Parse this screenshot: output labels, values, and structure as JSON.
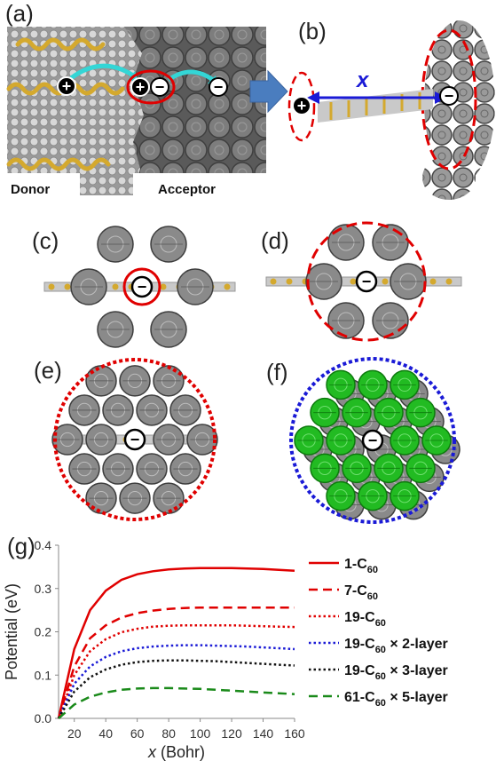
{
  "panels": {
    "a": {
      "label": "(a)",
      "donor": "Donor",
      "acceptor": "Acceptor"
    },
    "b": {
      "label": "(b)",
      "x_symbol": "x"
    },
    "c": {
      "label": "(c)"
    },
    "d": {
      "label": "(d)"
    },
    "e": {
      "label": "(e)"
    },
    "f": {
      "label": "(f)"
    },
    "g": {
      "label": "(g)"
    }
  },
  "charges": {
    "plus": "+",
    "minus": "−"
  },
  "colors": {
    "fullerene": "#7a7a7a",
    "green_fullerene": "#22bb22",
    "sulfur": "#d4a92e",
    "cyan_arrow": "#33d6d6",
    "block_arrow": "#4a7dbf",
    "red": "#e00000",
    "blue": "#1a1ad6"
  },
  "chart_data": {
    "type": "line",
    "xlabel_italic": "x",
    "xlabel_rest": " (Bohr)",
    "ylabel": "Potential (eV)",
    "xlim": [
      10,
      160
    ],
    "ylim": [
      0,
      0.4
    ],
    "xticks": [
      20,
      40,
      60,
      80,
      100,
      120,
      140,
      160
    ],
    "yticks": [
      0.0,
      0.1,
      0.2,
      0.3,
      0.4
    ],
    "grid": false,
    "legend_position": "right",
    "series": [
      {
        "legend_main": "1-C",
        "legend_sub": "60",
        "legend_tail": "",
        "color": "#e00000",
        "dash": "solid",
        "x": [
          10,
          20,
          30,
          40,
          50,
          60,
          70,
          80,
          90,
          100,
          110,
          120,
          130,
          140,
          150,
          160
        ],
        "y": [
          0,
          0.16,
          0.25,
          0.295,
          0.32,
          0.333,
          0.34,
          0.344,
          0.346,
          0.347,
          0.347,
          0.347,
          0.346,
          0.345,
          0.343,
          0.341
        ]
      },
      {
        "legend_main": "7-C",
        "legend_sub": "60",
        "legend_tail": "",
        "color": "#e00000",
        "dash": "dashed",
        "x": [
          10,
          20,
          30,
          40,
          50,
          60,
          70,
          80,
          90,
          100,
          110,
          120,
          130,
          140,
          150,
          160
        ],
        "y": [
          0,
          0.12,
          0.185,
          0.215,
          0.233,
          0.243,
          0.249,
          0.253,
          0.255,
          0.256,
          0.256,
          0.256,
          0.256,
          0.256,
          0.256,
          0.256
        ]
      },
      {
        "legend_main": "19-C",
        "legend_sub": "60",
        "legend_tail": "",
        "color": "#e00000",
        "dash": "dotted",
        "x": [
          10,
          20,
          30,
          40,
          50,
          60,
          70,
          80,
          90,
          100,
          110,
          120,
          130,
          140,
          150,
          160
        ],
        "y": [
          0,
          0.1,
          0.155,
          0.183,
          0.199,
          0.207,
          0.212,
          0.214,
          0.215,
          0.215,
          0.215,
          0.215,
          0.214,
          0.213,
          0.212,
          0.211
        ]
      },
      {
        "legend_main": "19-C",
        "legend_sub": "60",
        "legend_tail": " × 2-layer",
        "color": "#1a1ad6",
        "dash": "dotted",
        "x": [
          10,
          20,
          30,
          40,
          50,
          60,
          70,
          80,
          90,
          100,
          110,
          120,
          130,
          140,
          150,
          160
        ],
        "y": [
          0,
          0.08,
          0.12,
          0.142,
          0.155,
          0.162,
          0.166,
          0.168,
          0.169,
          0.169,
          0.168,
          0.167,
          0.166,
          0.164,
          0.162,
          0.16
        ]
      },
      {
        "legend_main": "19-C",
        "legend_sub": "60",
        "legend_tail": " × 3-layer",
        "color": "#111111",
        "dash": "dotted",
        "x": [
          10,
          20,
          30,
          40,
          50,
          60,
          70,
          80,
          90,
          100,
          110,
          120,
          130,
          140,
          150,
          160
        ],
        "y": [
          0,
          0.062,
          0.095,
          0.113,
          0.124,
          0.13,
          0.133,
          0.134,
          0.134,
          0.133,
          0.132,
          0.13,
          0.128,
          0.126,
          0.124,
          0.122
        ]
      },
      {
        "legend_main": "61-C",
        "legend_sub": "60",
        "legend_tail": " × 5-layer",
        "color": "#1a8a1a",
        "dash": "dashed",
        "x": [
          10,
          20,
          30,
          40,
          50,
          60,
          70,
          80,
          90,
          100,
          110,
          120,
          130,
          140,
          150,
          160
        ],
        "y": [
          0,
          0.032,
          0.05,
          0.06,
          0.066,
          0.069,
          0.07,
          0.07,
          0.069,
          0.068,
          0.066,
          0.064,
          0.062,
          0.06,
          0.058,
          0.056
        ]
      }
    ]
  }
}
